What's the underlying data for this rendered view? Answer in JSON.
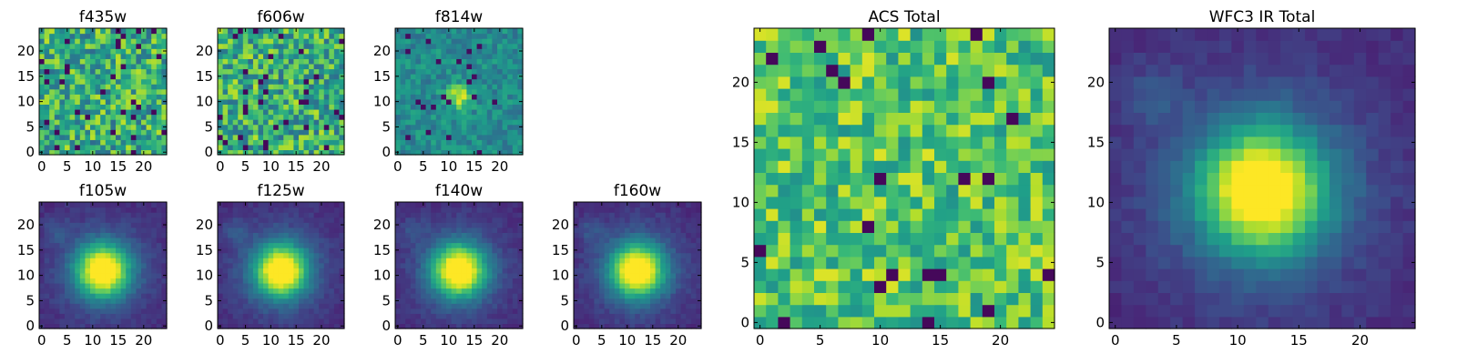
{
  "chart_data": [
    {
      "type": "heatmap",
      "title": "f435w",
      "pattern": "noise",
      "seed": 11,
      "ticks": [
        0,
        5,
        10,
        15,
        20
      ],
      "xlim": [
        0,
        25
      ],
      "ylim": [
        0,
        25
      ]
    },
    {
      "type": "heatmap",
      "title": "f606w",
      "pattern": "noise",
      "seed": 23,
      "ticks": [
        0,
        5,
        10,
        15,
        20
      ],
      "xlim": [
        0,
        25
      ],
      "ylim": [
        0,
        25
      ]
    },
    {
      "type": "heatmap",
      "title": "f814w",
      "pattern": "weak-source",
      "seed": 37,
      "ticks": [
        0,
        5,
        10,
        15,
        20
      ],
      "xlim": [
        0,
        25
      ],
      "ylim": [
        0,
        25
      ]
    },
    {
      "type": "heatmap",
      "title": "f105w",
      "pattern": "source",
      "seed": 41,
      "ticks": [
        0,
        5,
        10,
        15,
        20
      ],
      "xlim": [
        0,
        25
      ],
      "ylim": [
        0,
        25
      ]
    },
    {
      "type": "heatmap",
      "title": "f125w",
      "pattern": "source",
      "seed": 53,
      "ticks": [
        0,
        5,
        10,
        15,
        20
      ],
      "xlim": [
        0,
        25
      ],
      "ylim": [
        0,
        25
      ]
    },
    {
      "type": "heatmap",
      "title": "f140w",
      "pattern": "source",
      "seed": 67,
      "ticks": [
        0,
        5,
        10,
        15,
        20
      ],
      "xlim": [
        0,
        25
      ],
      "ylim": [
        0,
        25
      ]
    },
    {
      "type": "heatmap",
      "title": "f160w",
      "pattern": "source",
      "seed": 79,
      "ticks": [
        0,
        5,
        10,
        15,
        20
      ],
      "xlim": [
        0,
        25
      ],
      "ylim": [
        0,
        25
      ]
    },
    {
      "type": "heatmap",
      "title": "ACS Total",
      "pattern": "noise-bright",
      "seed": 97,
      "ticks": [
        0,
        5,
        10,
        15,
        20
      ],
      "xlim": [
        0,
        25
      ],
      "ylim": [
        0,
        25
      ]
    },
    {
      "type": "heatmap",
      "title": "WFC3 IR Total",
      "pattern": "source",
      "seed": 101,
      "ticks": [
        0,
        5,
        10,
        15,
        20
      ],
      "xlim": [
        0,
        25
      ],
      "ylim": [
        0,
        25
      ]
    }
  ],
  "colormap": "viridis",
  "colors": {
    "low": "#440154",
    "mid": "#21918c",
    "high": "#fde725",
    "frame": "#000000"
  }
}
